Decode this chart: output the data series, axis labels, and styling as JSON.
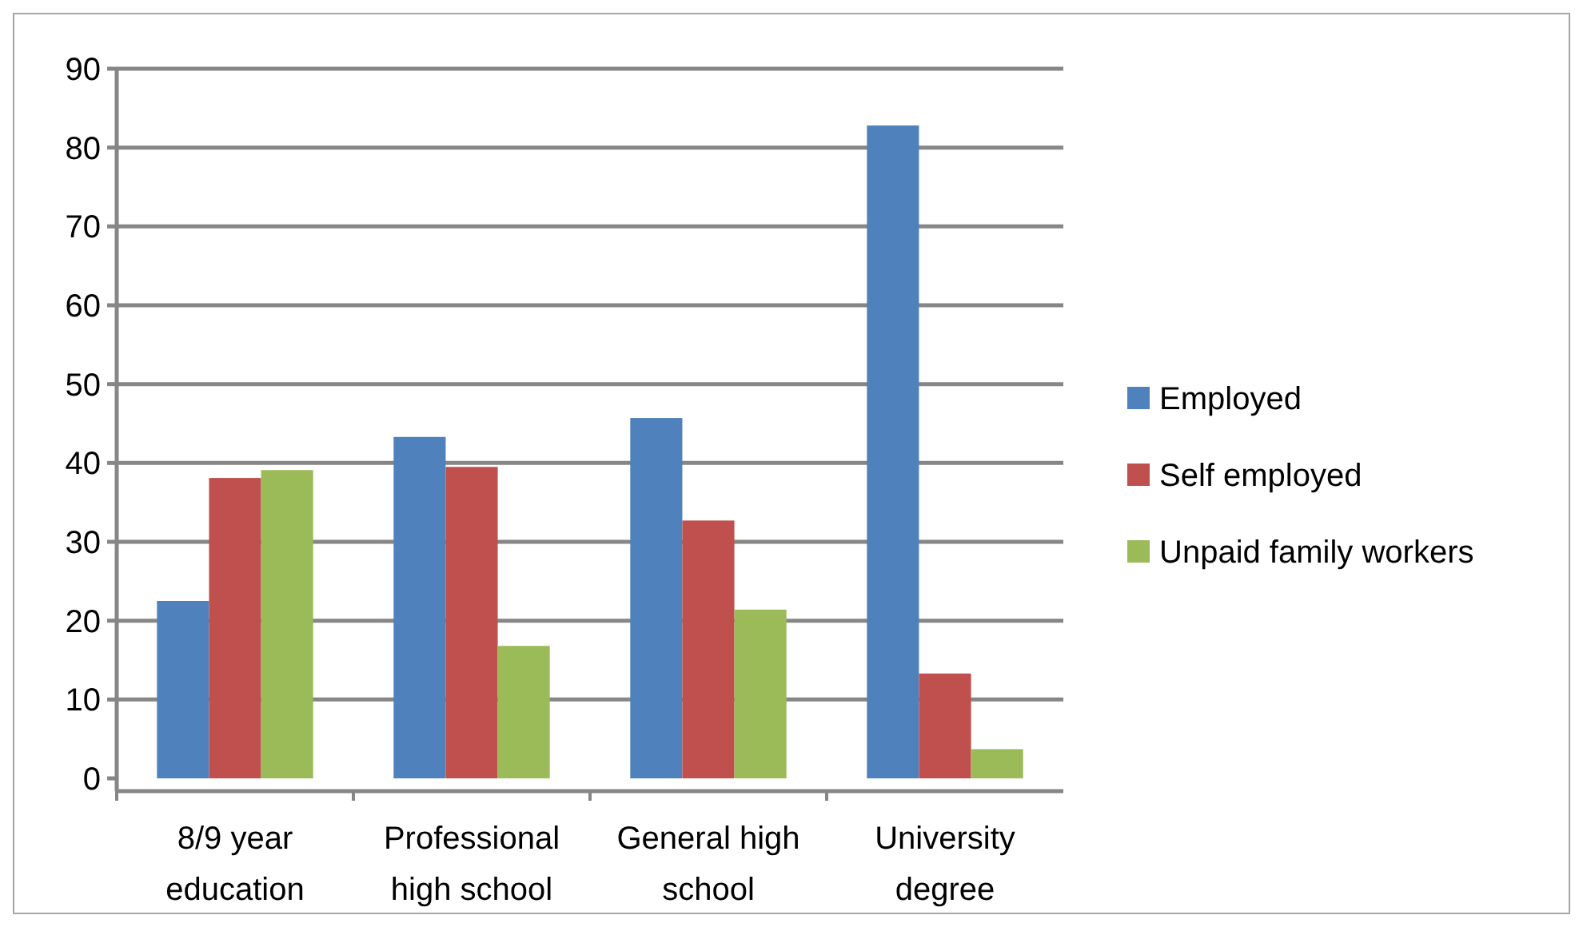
{
  "chart_data": {
    "type": "bar",
    "categories": [
      "8/9 year education",
      "Professional high school",
      "General high school",
      "University degree"
    ],
    "series": [
      {
        "name": "Employed",
        "color": "#4f81bd",
        "values": [
          22.5,
          43.3,
          45.7,
          82.8
        ]
      },
      {
        "name": "Self employed",
        "color": "#c0504d",
        "values": [
          38.1,
          39.5,
          32.7,
          13.3
        ]
      },
      {
        "name": "Unpaid family workers",
        "color": "#9bbb59",
        "values": [
          39.1,
          16.8,
          21.4,
          3.7
        ]
      }
    ],
    "ylim": [
      0,
      90
    ],
    "yticks": [
      0,
      10,
      20,
      30,
      40,
      50,
      60,
      70,
      80,
      90
    ],
    "grid": "y",
    "legend": "right"
  }
}
